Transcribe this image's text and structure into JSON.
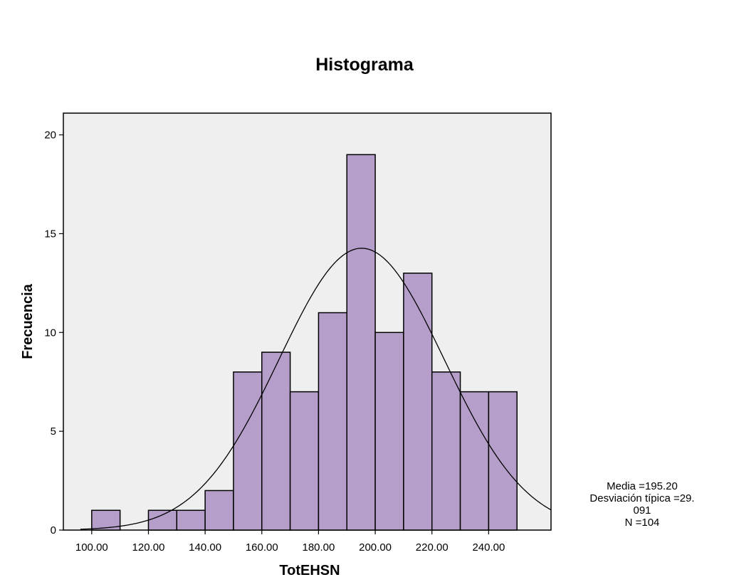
{
  "chart_data": {
    "type": "bar",
    "title": "Histograma",
    "xlabel": "TotEHSN",
    "ylabel": "Frecuencia",
    "bin_width": 10,
    "bins": [
      {
        "start": 100,
        "end": 110,
        "count": 1
      },
      {
        "start": 110,
        "end": 120,
        "count": 0
      },
      {
        "start": 120,
        "end": 130,
        "count": 1
      },
      {
        "start": 130,
        "end": 140,
        "count": 1
      },
      {
        "start": 140,
        "end": 150,
        "count": 2
      },
      {
        "start": 150,
        "end": 160,
        "count": 8
      },
      {
        "start": 160,
        "end": 170,
        "count": 9
      },
      {
        "start": 170,
        "end": 180,
        "count": 7
      },
      {
        "start": 180,
        "end": 190,
        "count": 11
      },
      {
        "start": 190,
        "end": 200,
        "count": 19
      },
      {
        "start": 200,
        "end": 210,
        "count": 10
      },
      {
        "start": 210,
        "end": 220,
        "count": 13
      },
      {
        "start": 220,
        "end": 230,
        "count": 8
      },
      {
        "start": 230,
        "end": 240,
        "count": 7
      },
      {
        "start": 240,
        "end": 250,
        "count": 7
      }
    ],
    "xlim": [
      90,
      262
    ],
    "ylim": [
      0,
      21.1
    ],
    "x_ticks": [
      100,
      120,
      140,
      160,
      180,
      200,
      220,
      240
    ],
    "x_tick_labels": [
      "100.00",
      "120.00",
      "140.00",
      "160.00",
      "180.00",
      "200.00",
      "220.00",
      "240.00"
    ],
    "y_ticks": [
      0,
      5,
      10,
      15,
      20
    ],
    "y_tick_labels": [
      "0",
      "5",
      "10",
      "15",
      "20"
    ],
    "normal_curve": {
      "mean": 195.2,
      "sd": 29.091,
      "n": 104
    },
    "stats_lines": [
      "Media =195.20",
      "Desviación típica =29.",
      "091",
      "N =104"
    ],
    "colors": {
      "bar_fill": "#b59fca",
      "bar_stroke": "#000000",
      "plot_bg": "#efefef",
      "curve": "#000000"
    }
  }
}
